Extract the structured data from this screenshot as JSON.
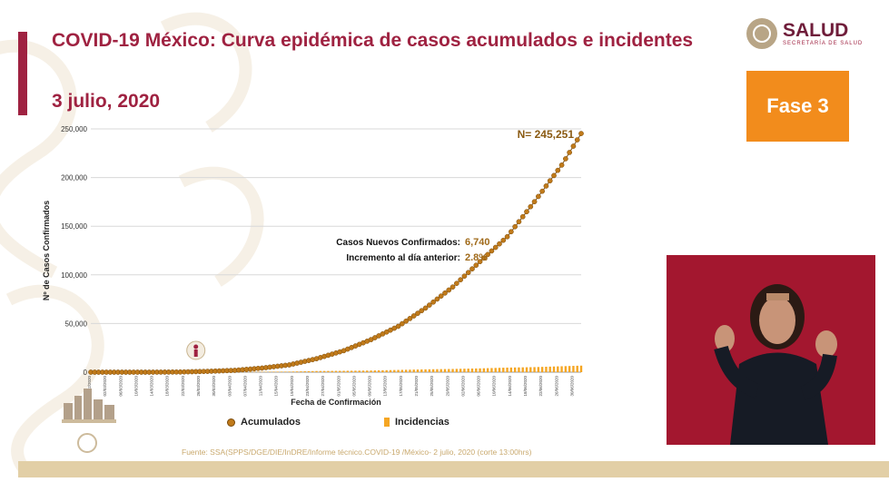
{
  "header": {
    "title": "COVID-19 México: Curva epidémica de casos acumulados e incidentes",
    "date": "3 julio, 2020"
  },
  "logo": {
    "name": "SALUD",
    "subtitle": "SECRETARÍA DE SALUD"
  },
  "phase_badge": {
    "label": "Fase 3",
    "color": "#f28c1c"
  },
  "colors": {
    "brand": "#9f2241",
    "cumulative": "#c07a1a",
    "incidence": "#f5a623",
    "interpreter_bg": "#a3172f"
  },
  "annotations": {
    "total": "N= 245,251",
    "new_cases_label": "Casos Nuevos Confirmados:",
    "new_cases_value": "6,740",
    "increase_label": "Incremento al día anterior:",
    "increase_value": "2.8%"
  },
  "legend": {
    "cumulative": "Acumulados",
    "incidence": "Incidencias"
  },
  "source": "Fuente: SSA(SPPS/DGE/DIE/InDRE/Informe técnico.COVID-19 /México- 2 julio, 2020 (corte 13:00hrs)",
  "chart_data": {
    "type": "line",
    "xlabel": "Fecha de Confirmación",
    "ylabel": "Nº de Casos Confirmados",
    "ylim": [
      0,
      250000
    ],
    "yticks": [
      "0",
      "50,000",
      "100,000",
      "150,000",
      "200,000",
      "250,000"
    ],
    "grid": true,
    "legend_position": "bottom",
    "x_start": "2020-02-27",
    "x_end": "2020-07-02",
    "series": [
      {
        "name": "Acumulados",
        "type": "line-markers",
        "x": [
          "2020-02-27",
          "2020-03-07",
          "2020-03-14",
          "2020-03-21",
          "2020-03-28",
          "2020-04-04",
          "2020-04-11",
          "2020-04-18",
          "2020-04-25",
          "2020-05-02",
          "2020-05-09",
          "2020-05-16",
          "2020-05-23",
          "2020-05-30",
          "2020-06-06",
          "2020-06-13",
          "2020-06-20",
          "2020-06-27",
          "2020-07-02"
        ],
        "values": [
          1,
          7,
          26,
          203,
          848,
          1890,
          4219,
          7497,
          13842,
          22088,
          33460,
          47144,
          65856,
          87512,
          113619,
          139196,
          175202,
          212802,
          245251
        ]
      },
      {
        "name": "Incidencias",
        "type": "bar",
        "x": [
          "2020-02-27",
          "2020-03-07",
          "2020-03-14",
          "2020-03-21",
          "2020-03-28",
          "2020-04-04",
          "2020-04-11",
          "2020-04-18",
          "2020-04-25",
          "2020-05-02",
          "2020-05-09",
          "2020-05-16",
          "2020-05-23",
          "2020-05-30",
          "2020-06-06",
          "2020-06-13",
          "2020-06-20",
          "2020-06-27",
          "2020-07-02"
        ],
        "values": [
          1,
          2,
          12,
          55,
          150,
          350,
          450,
          600,
          1200,
          1400,
          1700,
          2300,
          2900,
          3300,
          3900,
          4700,
          5200,
          6100,
          6740
        ]
      }
    ]
  }
}
